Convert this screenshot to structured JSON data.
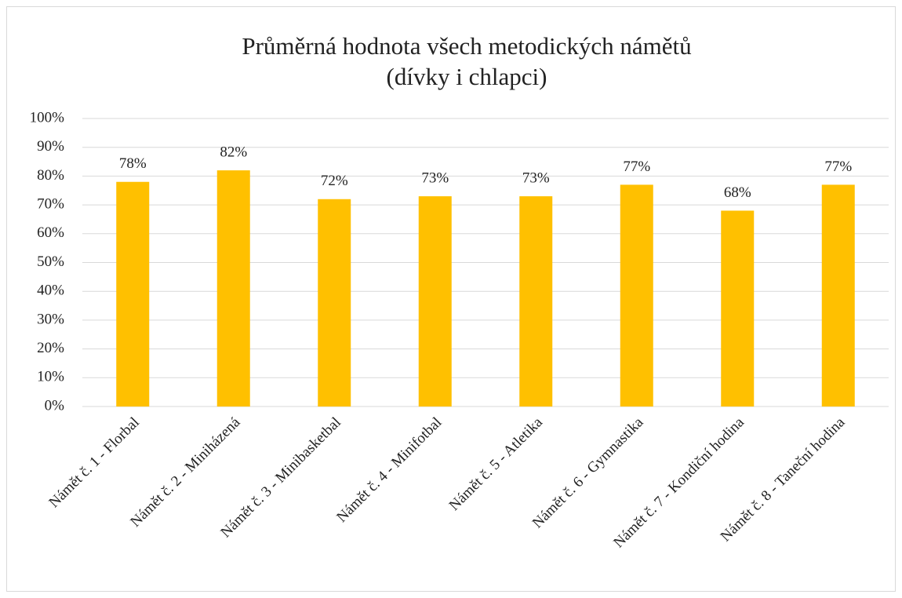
{
  "chart_data": {
    "type": "bar",
    "title": "Průměrná hodnota všech metodických námětů",
    "subtitle": "(dívky i chlapci)",
    "categories": [
      "Námět č. 1 - Florbal",
      "Námět č. 2 - Miniházená",
      "Námět č. 3 - Minibasketbal",
      "Námět č. 4 - Minifotbal",
      "Námět č. 5 - Atletika",
      "Námět č. 6 - Gymnastika",
      "Námět č. 7 - Kondiční hodina",
      "Námět č. 8 - Taneční hodina"
    ],
    "values": [
      78,
      82,
      72,
      73,
      73,
      77,
      68,
      77
    ],
    "value_labels": [
      "78%",
      "82%",
      "72%",
      "73%",
      "73%",
      "77%",
      "68%",
      "77%"
    ],
    "color": "#ffc000",
    "ylim": [
      0,
      100
    ],
    "yticks": [
      {
        "value": 0,
        "label": "0%"
      },
      {
        "value": 10,
        "label": "10%"
      },
      {
        "value": 20,
        "label": "20%"
      },
      {
        "value": 30,
        "label": "30%"
      },
      {
        "value": 40,
        "label": "40%"
      },
      {
        "value": 50,
        "label": "50%"
      },
      {
        "value": 60,
        "label": "60%"
      },
      {
        "value": 70,
        "label": "70%"
      },
      {
        "value": 80,
        "label": "80%"
      },
      {
        "value": 90,
        "label": "90%"
      },
      {
        "value": 100,
        "label": "100%"
      }
    ],
    "grid": true
  }
}
